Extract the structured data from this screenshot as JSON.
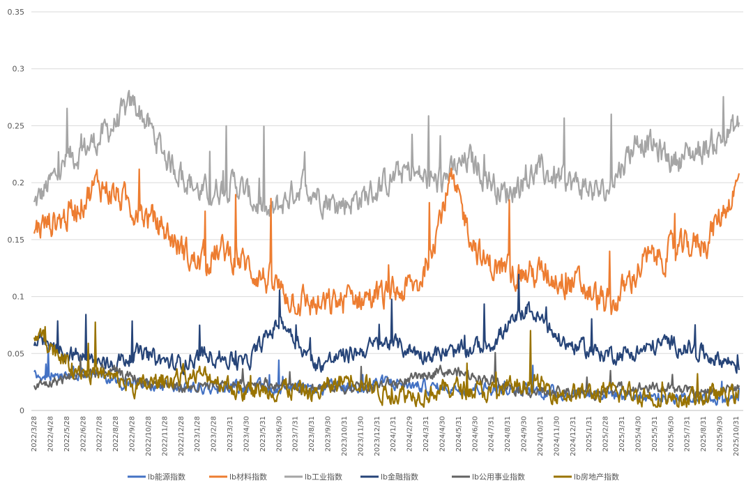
{
  "chart_data": {
    "type": "line",
    "title": "",
    "xlabel": "",
    "ylabel": "",
    "ylim": [
      0,
      0.35
    ],
    "y_ticks": [
      "0",
      "0.05",
      "0.1",
      "0.15",
      "0.2",
      "0.25",
      "0.3",
      "0.35"
    ],
    "y_tick_values": [
      0,
      0.05,
      0.1,
      0.15,
      0.2,
      0.25,
      0.3,
      0.35
    ],
    "x_tick_labels": [
      "2022/3/28",
      "2022/4/28",
      "2022/5/28",
      "2022/6/28",
      "2022/7/28",
      "2022/8/28",
      "2022/9/28",
      "2022/10/28",
      "2022/11/28",
      "2022/12/28",
      "2023/1/28",
      "2023/2/28",
      "2023/3/31",
      "2023/4/30",
      "2023/5/31",
      "2023/6/30",
      "2023/7/31",
      "2023/8/31",
      "2023/9/30",
      "2023/10/31",
      "2023/11/30",
      "2023/12/31",
      "2024/1/31",
      "2024/2/29",
      "2024/3/31",
      "2024/4/30",
      "2024/5/31",
      "2024/6/30",
      "2024/7/31",
      "2024/8/31",
      "2024/9/30",
      "2024/10/31",
      "2024/11/30",
      "2024/12/31",
      "2025/1/31",
      "2025/2/28",
      "2025/3/31",
      "2025/4/30",
      "2025/5/31",
      "2025/6/30",
      "2025/7/31",
      "2025/8/31",
      "2025/9/30",
      "2025/10/31"
    ],
    "legend_position": "bottom",
    "series": [
      {
        "name": "lb能源指数",
        "color": "#4472C4",
        "approx_levels": [
          0.03,
          0.035,
          0.025,
          0.02,
          0.02,
          0.02,
          0.018,
          0.02,
          0.025,
          0.02,
          0.02,
          0.018,
          0.015,
          0.015,
          0.012,
          0.012,
          0.01
        ]
      },
      {
        "name": "lb材料指数",
        "color": "#ED7D31",
        "approx_levels": [
          0.16,
          0.17,
          0.2,
          0.18,
          0.16,
          0.13,
          0.14,
          0.12,
          0.1,
          0.09,
          0.1,
          0.1,
          0.11,
          0.2,
          0.13,
          0.12,
          0.12,
          0.11,
          0.09,
          0.13,
          0.14,
          0.15,
          0.2
        ]
      },
      {
        "name": "lb工业指数",
        "color": "#A5A5A5",
        "approx_levels": [
          0.18,
          0.22,
          0.24,
          0.27,
          0.22,
          0.19,
          0.2,
          0.17,
          0.2,
          0.18,
          0.19,
          0.21,
          0.2,
          0.22,
          0.19,
          0.21,
          0.2,
          0.19,
          0.24,
          0.22,
          0.23,
          0.25
        ]
      },
      {
        "name": "lb金融指数",
        "color": "#264478",
        "approx_levels": [
          0.06,
          0.05,
          0.04,
          0.05,
          0.04,
          0.05,
          0.04,
          0.08,
          0.04,
          0.05,
          0.06,
          0.05,
          0.05,
          0.06,
          0.09,
          0.06,
          0.05,
          0.05,
          0.06,
          0.05,
          0.04
        ]
      },
      {
        "name": "lb公用事业指数",
        "color": "#636363",
        "approx_levels": [
          0.02,
          0.03,
          0.035,
          0.025,
          0.02,
          0.02,
          0.025,
          0.02,
          0.02,
          0.02,
          0.025,
          0.035,
          0.03,
          0.02,
          0.015,
          0.015,
          0.02,
          0.02,
          0.015,
          0.02
        ]
      },
      {
        "name": "lb房地产指数",
        "color": "#997300",
        "approx_levels": [
          0.07,
          0.04,
          0.03,
          0.02,
          0.03,
          0.03,
          0.015,
          0.02,
          0.015,
          0.03,
          0.015,
          0.015,
          0.02,
          0.015,
          0.025,
          0.015,
          0.015,
          0.015,
          0.01,
          0.012,
          0.015
        ]
      }
    ]
  }
}
